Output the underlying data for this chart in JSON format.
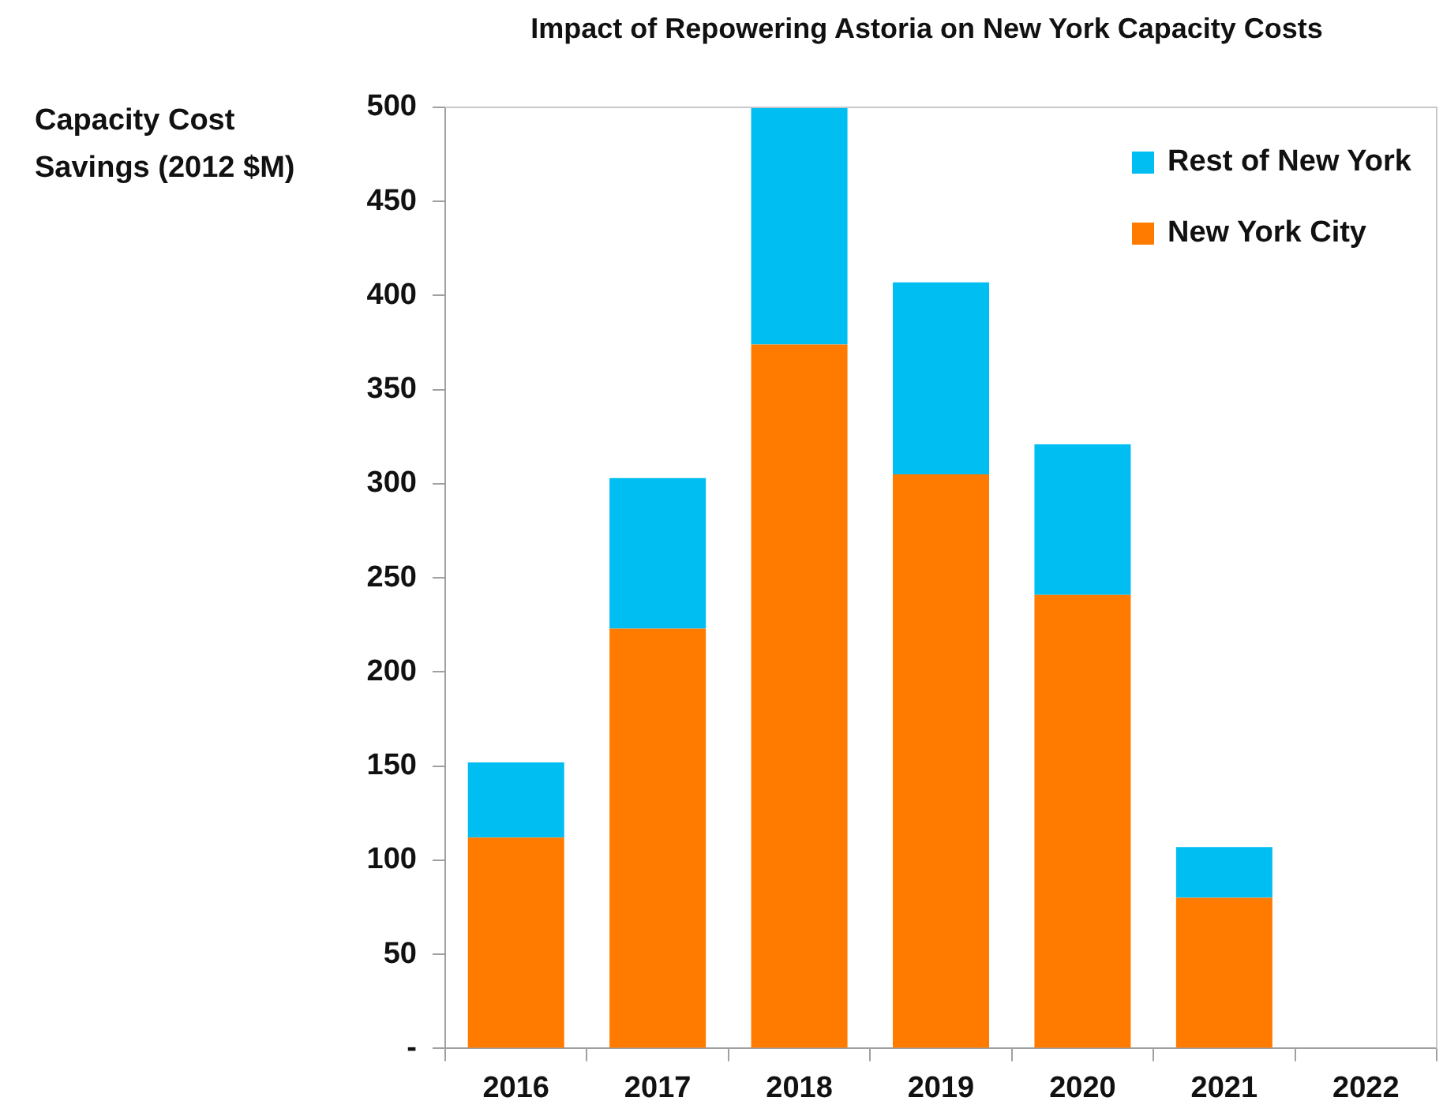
{
  "chart_data": {
    "type": "bar",
    "title": "Impact of Repowering Astoria on New York Capacity Costs",
    "ylabel": "Capacity Cost Savings (2012 $M)",
    "categories": [
      "2016",
      "2017",
      "2018",
      "2019",
      "2020",
      "2021",
      "2022"
    ],
    "series": [
      {
        "name": "New York City",
        "color": "#ff7b00",
        "values": [
          112,
          223,
          374,
          305,
          241,
          80,
          0
        ]
      },
      {
        "name": "Rest of New York",
        "color": "#00bdf2",
        "values": [
          40,
          80,
          126,
          102,
          80,
          27,
          0
        ]
      }
    ],
    "stacked": true,
    "ylim": [
      0,
      500
    ],
    "yticks": [
      {
        "value": 0,
        "label": "-"
      },
      50,
      100,
      150,
      200,
      250,
      300,
      350,
      400,
      450,
      500
    ],
    "legend": "top right"
  }
}
